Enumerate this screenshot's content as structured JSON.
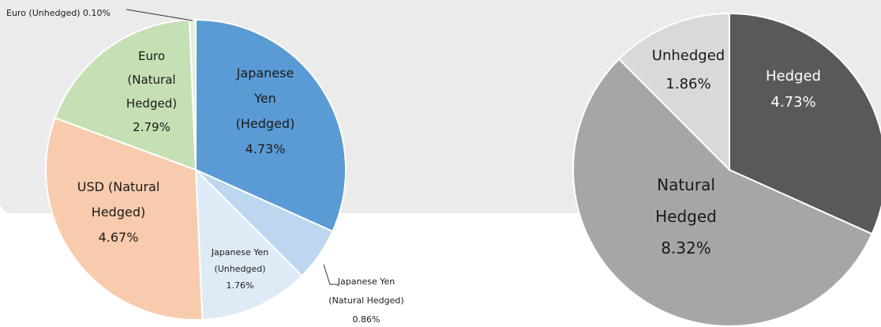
{
  "chart_data": [
    {
      "type": "pie",
      "slices": [
        {
          "label_lines": [
            "Japanese",
            "Yen",
            "(Hedged)"
          ],
          "value_text": "4.73%",
          "value": 4.73,
          "color": "#5b9bd5"
        },
        {
          "label_lines": [
            "Japanese Yen",
            "(Natural Hedged)"
          ],
          "value_text": "0.86%",
          "value": 0.86,
          "color": "#bdd7ee"
        },
        {
          "label_lines": [
            "Japanese Yen",
            "(Unhedged)"
          ],
          "value_text": "1.76%",
          "value": 1.76,
          "color": "#deebf7"
        },
        {
          "label_lines": [
            "USD (Natural",
            "Hedged)"
          ],
          "value_text": "4.67%",
          "value": 4.67,
          "color": "#f8cbad"
        },
        {
          "label_lines": [
            "Euro",
            "(Natural",
            "Hedged)"
          ],
          "value_text": "2.79%",
          "value": 2.79,
          "color": "#c5e0b4"
        },
        {
          "label_lines": [
            "Euro (Unhedged) 0.10%"
          ],
          "value_text": "",
          "value": 0.1,
          "color": "#e2efda"
        }
      ]
    },
    {
      "type": "pie",
      "slices": [
        {
          "label_lines": [
            "Hedged"
          ],
          "value_text": "4.73%",
          "value": 4.73,
          "color": "#595959"
        },
        {
          "label_lines": [
            "Natural",
            "Hedged"
          ],
          "value_text": "8.32%",
          "value": 8.32,
          "color": "#a6a6a6"
        },
        {
          "label_lines": [
            "Unhedged"
          ],
          "value_text": "1.86%",
          "value": 1.86,
          "color": "#d9d9d9"
        }
      ]
    }
  ]
}
